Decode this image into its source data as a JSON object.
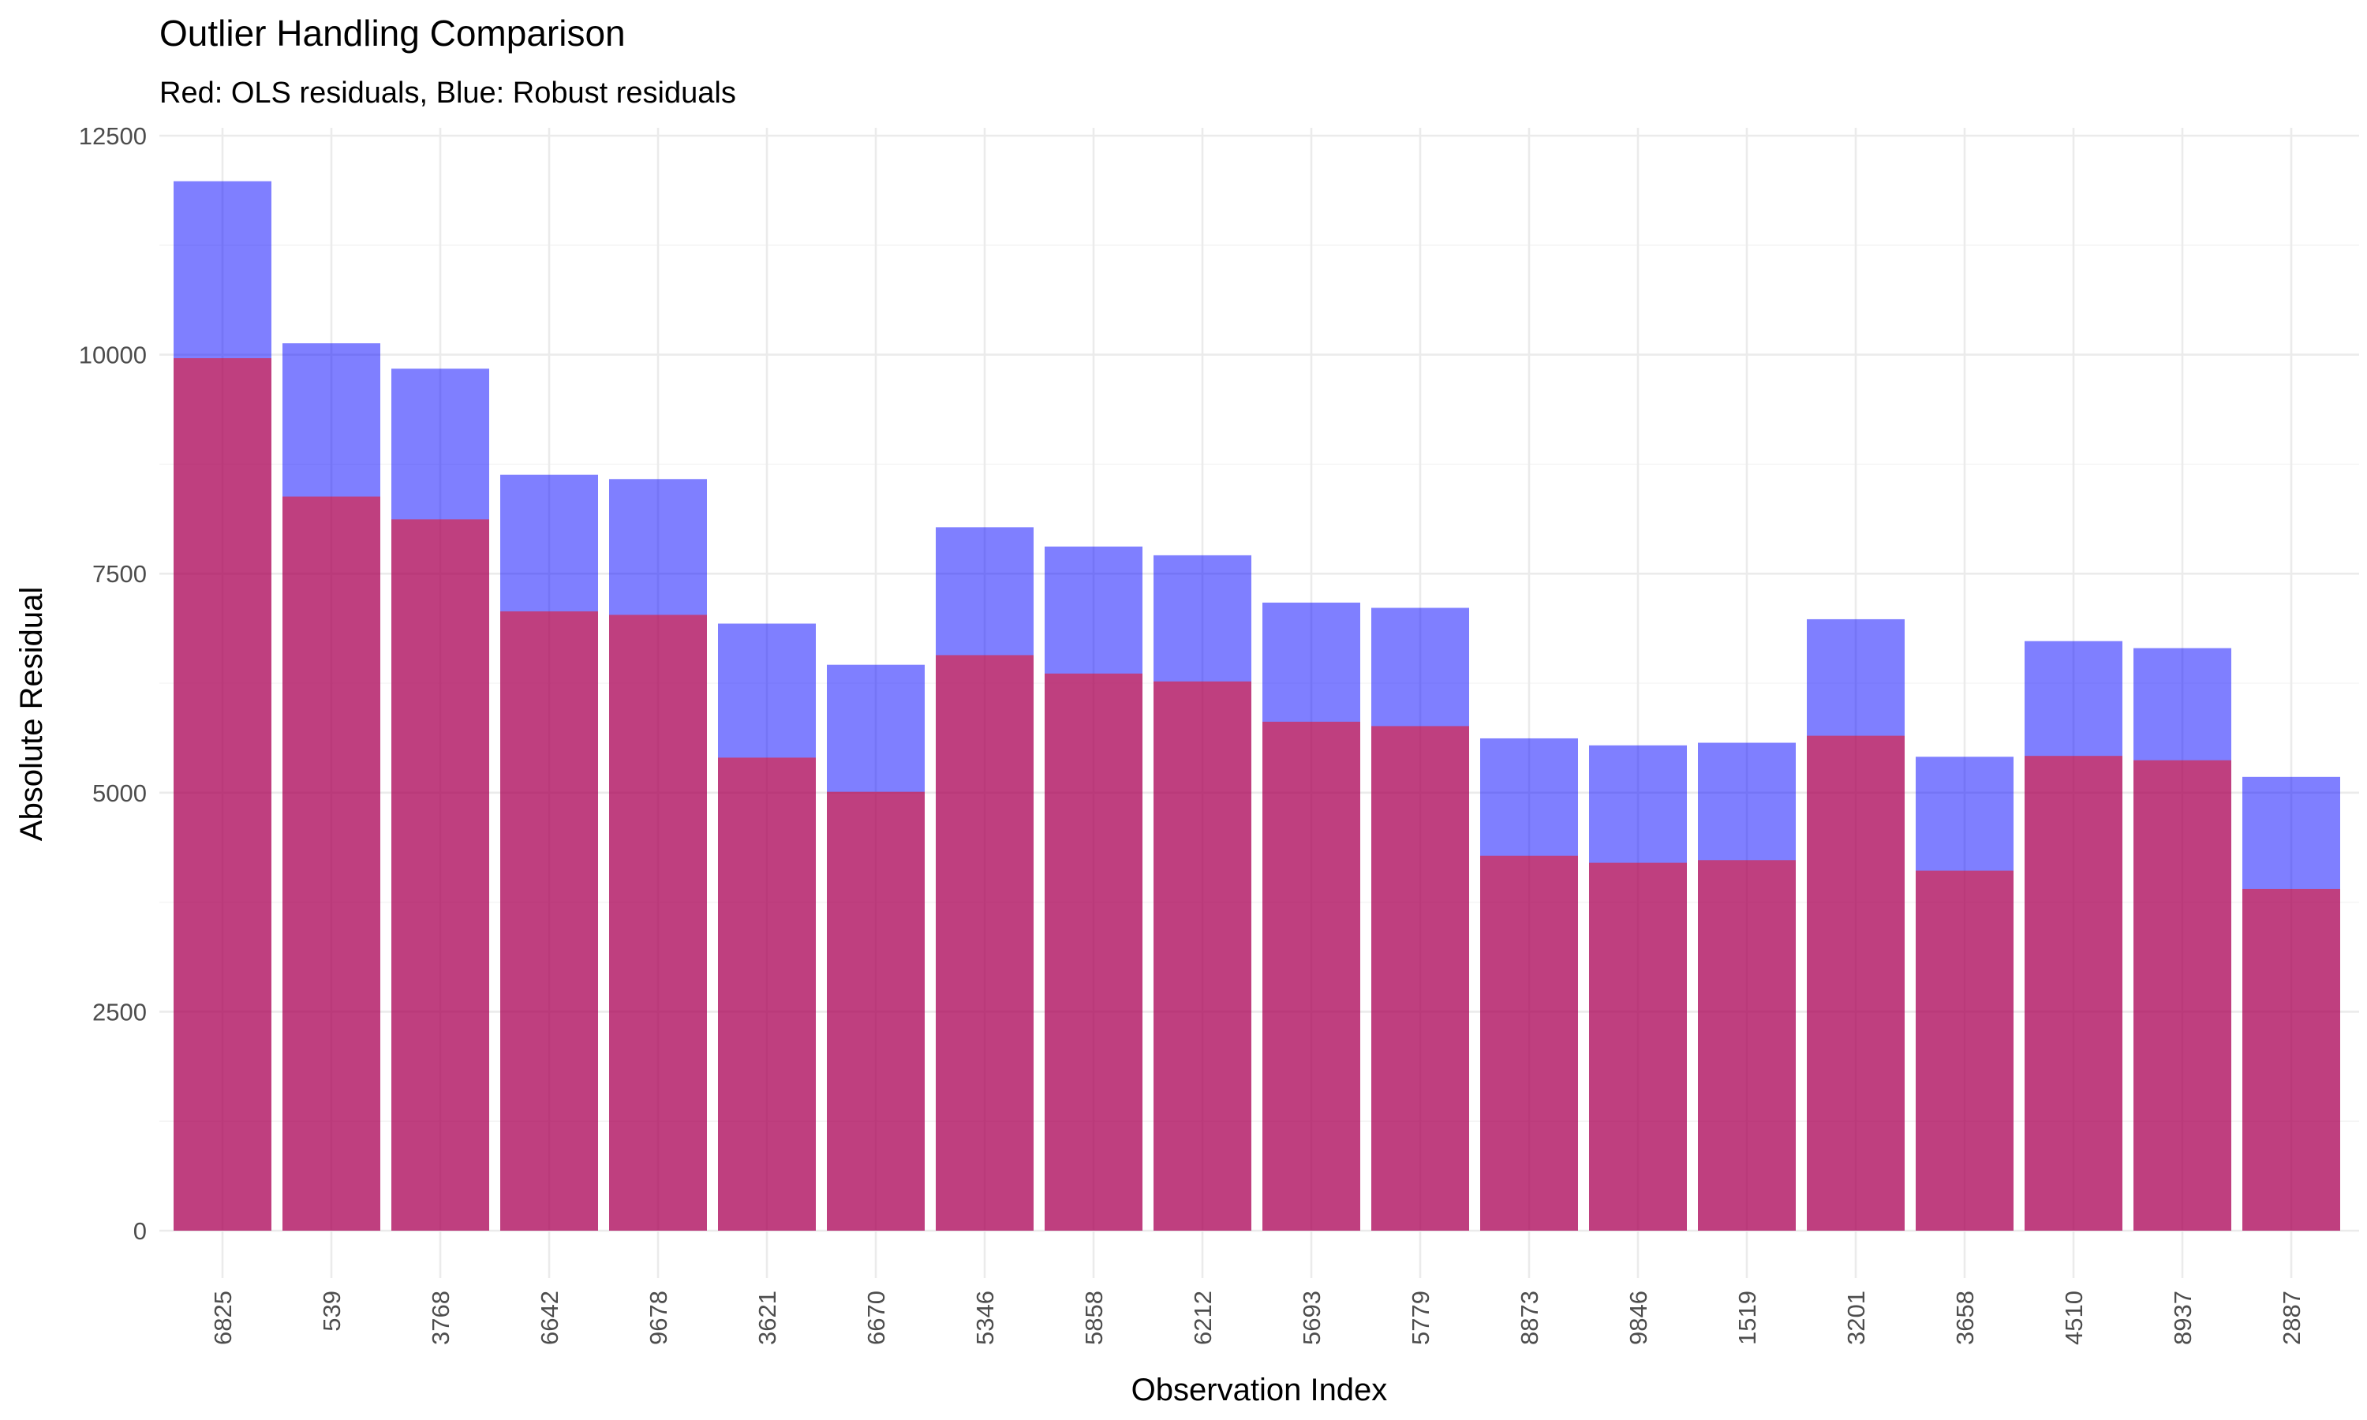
{
  "chart_data": {
    "type": "bar",
    "title": "Outlier Handling Comparison",
    "subtitle": "Red: OLS residuals, Blue: Robust residuals",
    "xlabel": "Observation Index",
    "ylabel": "Absolute Residual",
    "categories": [
      "6825",
      "539",
      "3768",
      "6642",
      "9678",
      "3621",
      "6670",
      "5346",
      "5858",
      "6212",
      "5693",
      "5779",
      "8873",
      "9846",
      "1519",
      "3201",
      "3658",
      "4510",
      "8937",
      "2887"
    ],
    "series": [
      {
        "name": "Robust residuals",
        "color": "#0000FF",
        "opacity": 0.5,
        "values": [
          11980,
          10130,
          9840,
          8630,
          8580,
          6930,
          6460,
          8030,
          7810,
          7710,
          7170,
          7110,
          5620,
          5540,
          5570,
          6980,
          5410,
          6730,
          6650,
          5180
        ]
      },
      {
        "name": "OLS residuals",
        "color": "#FF0000",
        "opacity": 0.5,
        "values": [
          9960,
          8380,
          8120,
          7070,
          7030,
          5400,
          5010,
          6570,
          6360,
          6270,
          5810,
          5760,
          4280,
          4200,
          4230,
          5650,
          4110,
          5420,
          5370,
          3900
        ]
      }
    ],
    "ylim": [
      0,
      12500
    ],
    "y_ticks": [
      0,
      2500,
      5000,
      7500,
      10000,
      12500
    ],
    "y_tick_labels": [
      "0",
      "2500",
      "5000",
      "7500",
      "10000",
      "12500"
    ],
    "x_tick_rotation": -90,
    "grid": true,
    "legend": "none"
  }
}
